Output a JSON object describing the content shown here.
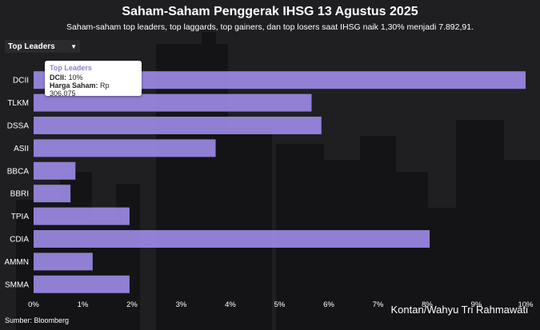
{
  "header": {
    "title": "Saham-Saham Penggerak IHSG 13 Agustus 2025",
    "subtitle": "Saham-saham top leaders, top laggards, top gainers, dan top losers saat IHSG naik 1,30% menjadi 7.892,91."
  },
  "dropdown": {
    "selected": "Top Leaders",
    "icon": "caret-down-icon"
  },
  "tooltip": {
    "heading": "Top Leaders",
    "line1_label": "DCII:",
    "line1_value": "10%",
    "line2_label": "Harga Saham:",
    "line2_value": "Rp 306.075"
  },
  "footer": {
    "source": "Sumber: Bloomberg",
    "credit": "Kontan/Wahyu Tri Rahmawati"
  },
  "colors": {
    "bar": "#9d8be8",
    "background": "#1f1f22",
    "axis_text": "#ffffff"
  },
  "chart_data": {
    "type": "bar",
    "orientation": "horizontal",
    "categories": [
      "DCII",
      "TLKM",
      "DSSA",
      "ASII",
      "BBCA",
      "BBRI",
      "TPIA",
      "CDIA",
      "AMMN",
      "SMMA"
    ],
    "values": [
      10,
      5.65,
      5.85,
      3.7,
      0.85,
      0.75,
      1.95,
      8.05,
      1.2,
      1.95
    ],
    "xlim": [
      0,
      10
    ],
    "xticks": [
      "0%",
      "1%",
      "2%",
      "3%",
      "4%",
      "5%",
      "6%",
      "7%",
      "8%",
      "9%",
      "10%"
    ],
    "grid": false,
    "legend": "none"
  }
}
